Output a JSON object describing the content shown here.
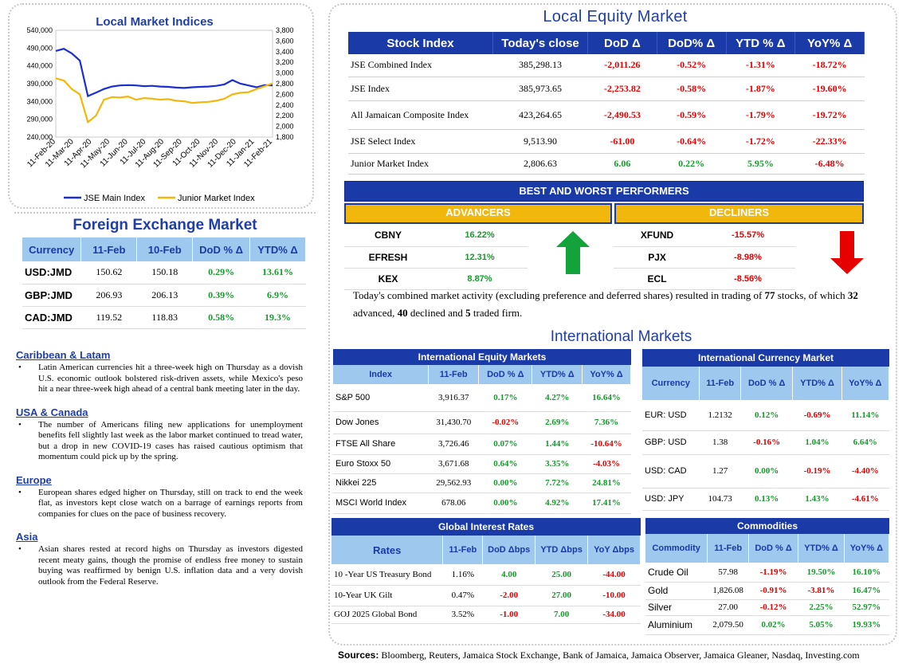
{
  "chart_data": {
    "type": "line",
    "title": "Local Market Indices",
    "x_tick_labels": [
      "11-Feb-20",
      "11-Mar-20",
      "11-Apr-20",
      "11-May-20",
      "11-Jun-20",
      "11-Jul-20",
      "11-Aug-20",
      "11-Sep-20",
      "11-Oct-20",
      "11-Nov-20",
      "11-Dec-20",
      "11-Jan-21",
      "11-Feb-21"
    ],
    "y_left_ticks": [
      "540,000",
      "490,000",
      "440,000",
      "390,000",
      "340,000",
      "290,000",
      "240,000"
    ],
    "y_right_ticks": [
      "3,800",
      "3,600",
      "3,400",
      "3,200",
      "3,000",
      "2,800",
      "2,600",
      "2,400",
      "2,200",
      "2,000",
      "1,800"
    ],
    "ylim_left": [
      240000,
      540000
    ],
    "ylim_right": [
      1800,
      3800
    ],
    "legend_position": "bottom",
    "series": [
      {
        "name": "JSE Main Index",
        "color": "#1a2fd1",
        "axis": "left",
        "values": [
          482000,
          488000,
          475000,
          455000,
          355000,
          365000,
          375000,
          382000,
          385000,
          386000,
          385000,
          383000,
          384000,
          382000,
          381000,
          379000,
          378000,
          380000,
          381000,
          382000,
          384000,
          388000,
          400000,
          390000,
          385000,
          380000,
          386000,
          385298
        ]
      },
      {
        "name": "Junior Market Index",
        "color": "#f2b70b",
        "axis": "right",
        "values": [
          2900,
          2860,
          2700,
          2600,
          2080,
          2200,
          2500,
          2550,
          2540,
          2560,
          2500,
          2530,
          2520,
          2500,
          2510,
          2480,
          2470,
          2440,
          2450,
          2460,
          2480,
          2520,
          2600,
          2630,
          2640,
          2700,
          2750,
          2806.63
        ]
      }
    ]
  },
  "fx": {
    "title": "Foreign Exchange Market",
    "headers": [
      "Currency",
      "11-Feb",
      "10-Feb",
      "DoD % Δ",
      "YTD% Δ"
    ],
    "rows": [
      [
        "USD:JMD",
        "150.62",
        "150.18",
        "0.29%",
        "13.61%"
      ],
      [
        "GBP:JMD",
        "206.93",
        "206.13",
        "0.39%",
        "6.9%"
      ],
      [
        "CAD:JMD",
        "119.52",
        "118.83",
        "0.58%",
        "19.3%"
      ]
    ]
  },
  "news": [
    {
      "heading": "Caribbean & Latam",
      "text": "Latin American currencies hit a three-week high on Thursday as a dovish U.S. economic outlook bolstered risk-driven assets, while Mexico's peso hit a near three-week high ahead of a central bank meeting later in the day."
    },
    {
      "heading": "USA & Canada",
      "text": "The number of Americans filing new applications for unemployment benefits fell slightly last week as the labor market continued to tread water, but a drop in new COVID-19 cases has raised cautious optimism that momentum could pick up by the spring."
    },
    {
      "heading": "Europe",
      "text": "European shares edged higher on Thursday, still on track to end the week flat, as investors kept close watch on a barrage of earnings reports from companies for clues on the pace of business recovery."
    },
    {
      "heading": "Asia",
      "text": "Asian shares rested at record highs on Thursday as investors digested recent meaty gains, though the promise of endless free money to sustain buying was reaffirmed by benign U.S. inflation data and a very dovish outlook from the Federal Reserve."
    }
  ],
  "equity": {
    "title": "Local Equity Market",
    "headers": [
      "Stock Index",
      "Today's close",
      "DoD  Δ",
      "DoD% Δ",
      "YTD % Δ",
      "YoY% Δ"
    ],
    "rows": [
      [
        "JSE Combined Index",
        "385,298.13",
        "-2,011.26",
        "-0.52%",
        "-1.31%",
        "-18.72%"
      ],
      [
        "JSE Index",
        "385,973.65",
        "-2,253.82",
        "-0.58%",
        "-1.87%",
        "-19.60%"
      ],
      [
        "All Jamaican Composite Index",
        "423,264.65",
        "-2,490.53",
        "-0.59%",
        "-1.79%",
        "-19.72%"
      ],
      [
        "JSE Select Index",
        "9,513.90",
        "-61.00",
        "-0.64%",
        "-1.72%",
        "-22.33%"
      ],
      [
        "Junior Market Index",
        "2,806.63",
        "6.06",
        "0.22%",
        "5.95%",
        "-6.48%"
      ]
    ]
  },
  "performers": {
    "title": "BEST AND WORST PERFORMERS",
    "advancers_label": "ADVANCERS",
    "decliners_label": "DECLINERS",
    "advancers": [
      [
        "CBNY",
        "16.22%"
      ],
      [
        "EFRESH",
        "12.31%"
      ],
      [
        "KEX",
        "8.87%"
      ]
    ],
    "decliners": [
      [
        "XFUND",
        "-15.57%"
      ],
      [
        "PJX",
        "-8.98%"
      ],
      [
        "ECL",
        "-8.56%"
      ]
    ]
  },
  "activity": {
    "p1": "Today's combined market activity (excluding preference and deferred shares) resulted in trading of ",
    "stocks": "77",
    "p2": " stocks, of which ",
    "advanced": "32",
    "p3": " advanced, ",
    "declined": "40",
    "p4": " declined and ",
    "firm": "5",
    "p5": " traded firm."
  },
  "intl": {
    "title": "International Markets",
    "equity": {
      "title": "International Equity Markets",
      "headers": [
        "Index",
        "11-Feb",
        "DoD % Δ",
        "YTD% Δ",
        "YoY% Δ"
      ],
      "rows": [
        [
          "S&P 500",
          "3,916.37",
          "0.17%",
          "4.27%",
          "16.64%"
        ],
        [
          "Dow Jones",
          "31,430.70",
          "-0.02%",
          "2.69%",
          "7.36%"
        ],
        [
          "FTSE All Share",
          "3,726.46",
          "0.07%",
          "1.44%",
          "-10.64%"
        ],
        [
          "Euro Stoxx 50",
          "3,671.68",
          "0.64%",
          "3.35%",
          "-4.03%"
        ],
        [
          "Nikkei 225",
          "29,562.93",
          "0.00%",
          "7.72%",
          "24.81%"
        ],
        [
          "MSCI World Index",
          "678.06",
          "0.00%",
          "4.92%",
          "17.41%"
        ]
      ]
    },
    "currency": {
      "title": "International Currency Market",
      "headers": [
        "Currency",
        "11-Feb",
        "DoD % Δ",
        "YTD% Δ",
        "YoY% Δ"
      ],
      "rows": [
        [
          "EUR: USD",
          "1.2132",
          "0.12%",
          "-0.69%",
          "11.14%"
        ],
        [
          "GBP: USD",
          "1.38",
          "-0.16%",
          "1.04%",
          "6.64%"
        ],
        [
          "USD: CAD",
          "1.27",
          "0.00%",
          "-0.19%",
          "-4.40%"
        ],
        [
          "USD: JPY",
          "104.73",
          "0.13%",
          "1.43%",
          "-4.61%"
        ]
      ]
    },
    "rates": {
      "title": "Global Interest Rates",
      "headers": [
        "Rates",
        "11-Feb",
        "DoD Δbps",
        "YTD Δbps",
        "YoY Δbps"
      ],
      "rows": [
        [
          "10 -Year US Treasury Bond",
          "1.16%",
          "4.00",
          "25.00",
          "-44.00"
        ],
        [
          "10-Year UK Gilt",
          "0.47%",
          "-2.00",
          "27.00",
          "-10.00"
        ],
        [
          "GOJ 2025 Global Bond",
          "3.52%",
          "-1.00",
          "7.00",
          "-34.00"
        ]
      ]
    },
    "commodities": {
      "title": "Commodities",
      "headers": [
        "Commodity",
        "11-Feb",
        "DoD % Δ",
        "YTD% Δ",
        "YoY% Δ"
      ],
      "rows": [
        [
          "Crude Oil",
          "57.98",
          "-1.19%",
          "19.50%",
          "16.10%"
        ],
        [
          "Gold",
          "1,826.08",
          "-0.91%",
          "-3.81%",
          "16.47%"
        ],
        [
          "Silver",
          "27.00",
          "-0.12%",
          "2.25%",
          "52.97%"
        ],
        [
          "Aluminium",
          "2,079.50",
          "0.02%",
          "5.05%",
          "19.93%"
        ]
      ]
    }
  },
  "sources": {
    "label": "Sources:",
    "text": " Bloomberg, Reuters, Jamaica Stock Exchange, Bank of Jamaica, Jamaica Observer, Jamaica Gleaner, Nasdaq, Investing.com"
  }
}
